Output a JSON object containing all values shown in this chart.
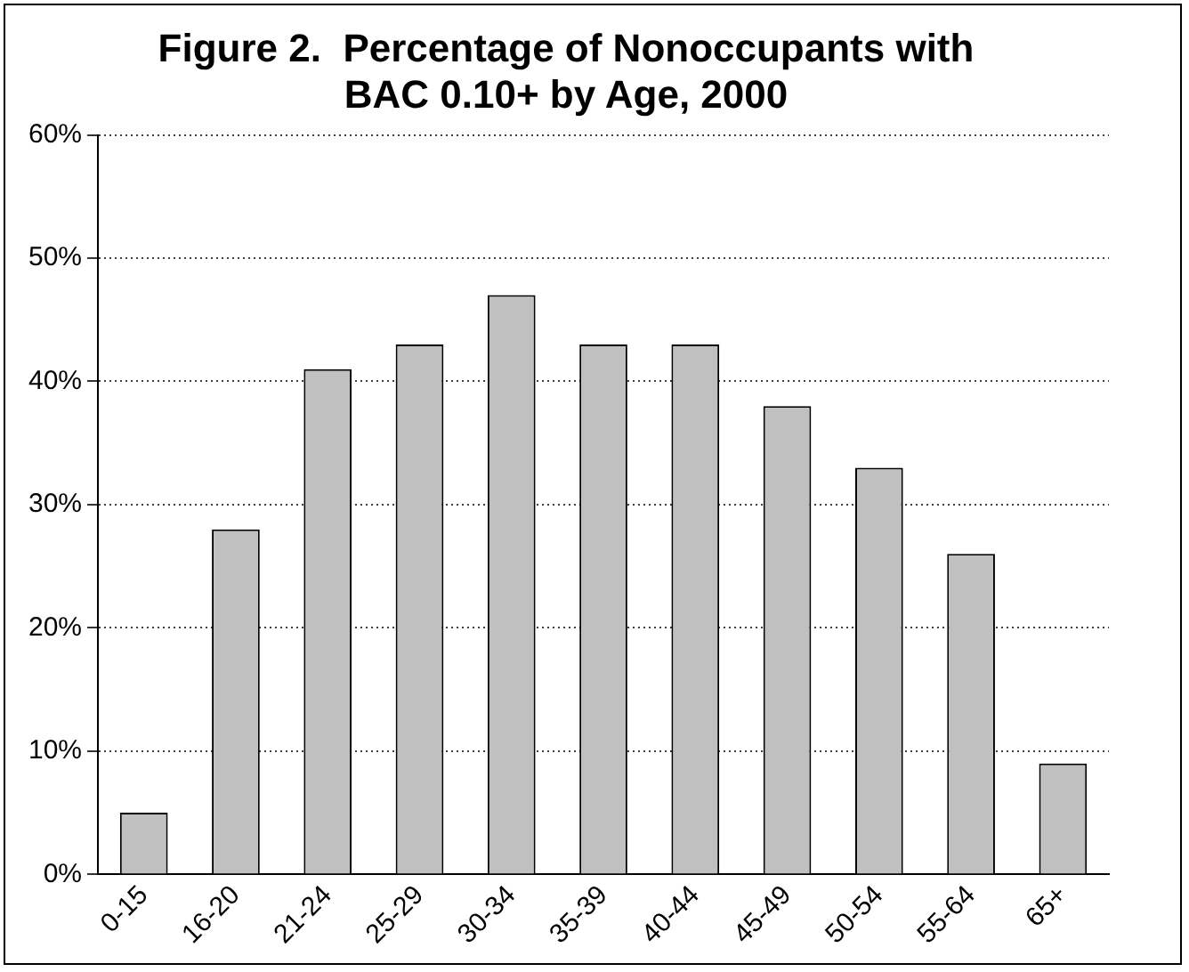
{
  "chart_data": {
    "type": "bar",
    "title": "Figure 2.  Percentage of Nonoccupants with BAC 0.10+ by Age, 2000",
    "categories": [
      "0-15",
      "16-20",
      "21-24",
      "25-29",
      "30-34",
      "35-39",
      "40-44",
      "45-49",
      "50-54",
      "55-64",
      "65+"
    ],
    "values": [
      5,
      28,
      41,
      43,
      47,
      43,
      43,
      38,
      33,
      26,
      9
    ],
    "color": "#c0c0c0",
    "ylim": [
      0,
      60
    ],
    "yticks": [
      {
        "value": 0,
        "label": "0%"
      },
      {
        "value": 10,
        "label": "10%"
      },
      {
        "value": 20,
        "label": "20%"
      },
      {
        "value": 30,
        "label": "30%"
      },
      {
        "value": 40,
        "label": "40%"
      },
      {
        "value": 50,
        "label": "50%"
      },
      {
        "value": 60,
        "label": "60%"
      }
    ],
    "grid": "y",
    "legend": false
  }
}
